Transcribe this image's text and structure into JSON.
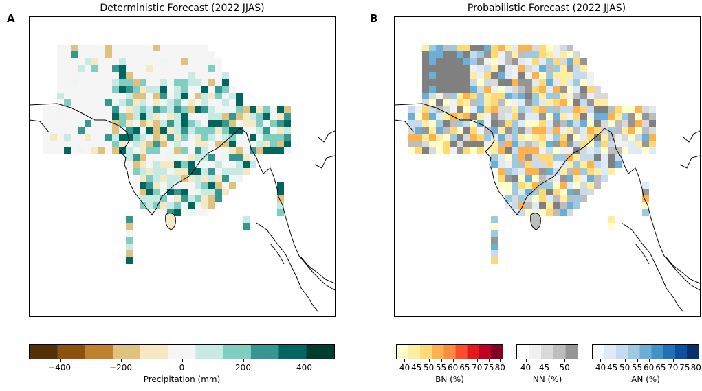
{
  "panels": {
    "left": {
      "letter": "A",
      "title": "Deterministic Forecast (2022 JJAS)"
    },
    "right": {
      "letter": "B",
      "title": "Probabilistic Forecast (2022 JJAS)"
    }
  },
  "colorbars": {
    "precip": {
      "label": "Precipitation (mm)",
      "ticks": [
        "−400",
        "−200",
        "0",
        "200",
        "400"
      ],
      "colors": [
        "#543005",
        "#8c510a",
        "#bf812d",
        "#dfc27d",
        "#f6e8c3",
        "#f5f5f5",
        "#c7eae5",
        "#80cdc1",
        "#35978f",
        "#01665e",
        "#003c30"
      ]
    },
    "bn": {
      "label": "BN (%)",
      "ticks": [
        "40",
        "45",
        "50",
        "55",
        "60",
        "65",
        "70",
        "75",
        "80"
      ],
      "colors": [
        "#ffffcc",
        "#ffeda0",
        "#fed976",
        "#feb24c",
        "#fd8d3c",
        "#fc4e2a",
        "#e31a1c",
        "#bd0026",
        "#800026"
      ]
    },
    "nn": {
      "label": "NN (%)",
      "ticks": [
        "40",
        "45",
        "50"
      ],
      "colors": [
        "#ffffff",
        "#f0f0f0",
        "#d9d9d9",
        "#bdbdbd",
        "#969696"
      ]
    },
    "an": {
      "label": "AN (%)",
      "ticks": [
        "40",
        "45",
        "50",
        "55",
        "60",
        "65",
        "70",
        "75",
        "80"
      ],
      "colors": [
        "#f7fbff",
        "#deebf7",
        "#c6dbef",
        "#9ecae1",
        "#6baed6",
        "#4292c6",
        "#2171b5",
        "#08519c",
        "#08306b"
      ]
    }
  }
}
